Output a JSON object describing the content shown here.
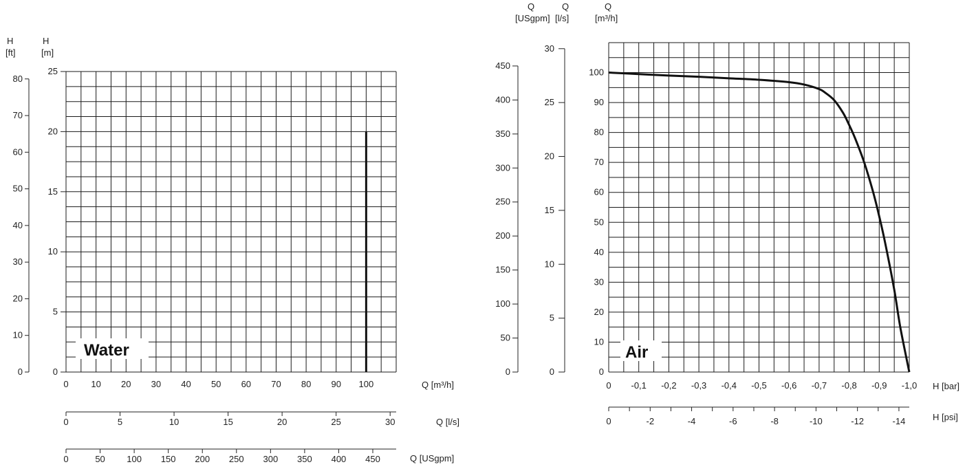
{
  "chart_data": [
    {
      "type": "line",
      "panel_label": "Water",
      "y_axes": [
        {
          "label_line1": "H",
          "label_line2": "[ft]",
          "ticks": [
            0,
            10,
            20,
            30,
            40,
            50,
            60,
            70,
            80
          ],
          "range": [
            0,
            82.02
          ]
        },
        {
          "label_line1": "H",
          "label_line2": "[m]",
          "ticks": [
            0,
            5,
            10,
            15,
            20,
            25
          ],
          "range": [
            0,
            25
          ]
        }
      ],
      "x_axes": [
        {
          "label": "Q [m³/h]",
          "ticks": [
            0,
            10,
            20,
            30,
            40,
            50,
            60,
            70,
            80,
            90,
            100
          ],
          "range": [
            0,
            110
          ]
        },
        {
          "label": "Q [l/s]",
          "ticks": [
            0,
            5,
            10,
            15,
            20,
            25,
            30
          ],
          "range": [
            0,
            30.56
          ]
        },
        {
          "label": "Q [USgpm]",
          "ticks": [
            0,
            50,
            100,
            150,
            200,
            250,
            300,
            350,
            400,
            450
          ],
          "range": [
            0,
            484.3
          ]
        }
      ],
      "grid": true,
      "series": [
        {
          "x": [
            100,
            100
          ],
          "y": [
            0,
            20
          ]
        }
      ]
    },
    {
      "type": "line",
      "panel_label": "Air",
      "y_axes": [
        {
          "label_line1": "Q",
          "label_line2": "[USgpm]",
          "ticks": [
            0,
            50,
            100,
            150,
            200,
            250,
            300,
            350,
            400,
            450
          ],
          "range": [
            0,
            484.3
          ]
        },
        {
          "label_line1": "Q",
          "label_line2": "[l/s]",
          "ticks": [
            0,
            5,
            10,
            15,
            20,
            25,
            30
          ],
          "range": [
            0,
            30.56
          ]
        },
        {
          "label_line1": "Q",
          "label_line2": "[m³/h]",
          "ticks": [
            0,
            10,
            20,
            30,
            40,
            50,
            60,
            70,
            80,
            90,
            100
          ],
          "range": [
            0,
            110
          ]
        }
      ],
      "x_axes": [
        {
          "label": "H [bar]",
          "ticks": [
            "0",
            "-0,1",
            "-0,2",
            "-0,3",
            "-0,4",
            "-0,5",
            "-0,6",
            "-0,7",
            "-0,8",
            "-0,9",
            "-1,0"
          ],
          "range": [
            0,
            -1.0
          ]
        },
        {
          "label": "H [psi]",
          "ticks": [
            "0",
            "-2",
            "-4",
            "-6",
            "-8",
            "-10",
            "-12",
            "-14"
          ],
          "range": [
            0,
            -14.5
          ]
        }
      ],
      "grid": true,
      "series": [
        {
          "x": [
            0,
            -0.1,
            -0.2,
            -0.3,
            -0.4,
            -0.5,
            -0.6,
            -0.65,
            -0.7,
            -0.72,
            -0.75,
            -0.78,
            -0.8,
            -0.82,
            -0.85,
            -0.88,
            -0.9,
            -0.92,
            -0.95,
            -0.97,
            -1.0
          ],
          "y": [
            100,
            99.5,
            99,
            98.6,
            98.1,
            97.6,
            96.8,
            96,
            94.5,
            93.3,
            90.8,
            86.5,
            82.5,
            78,
            70,
            60,
            52,
            43,
            27.5,
            15,
            0
          ]
        }
      ]
    }
  ]
}
